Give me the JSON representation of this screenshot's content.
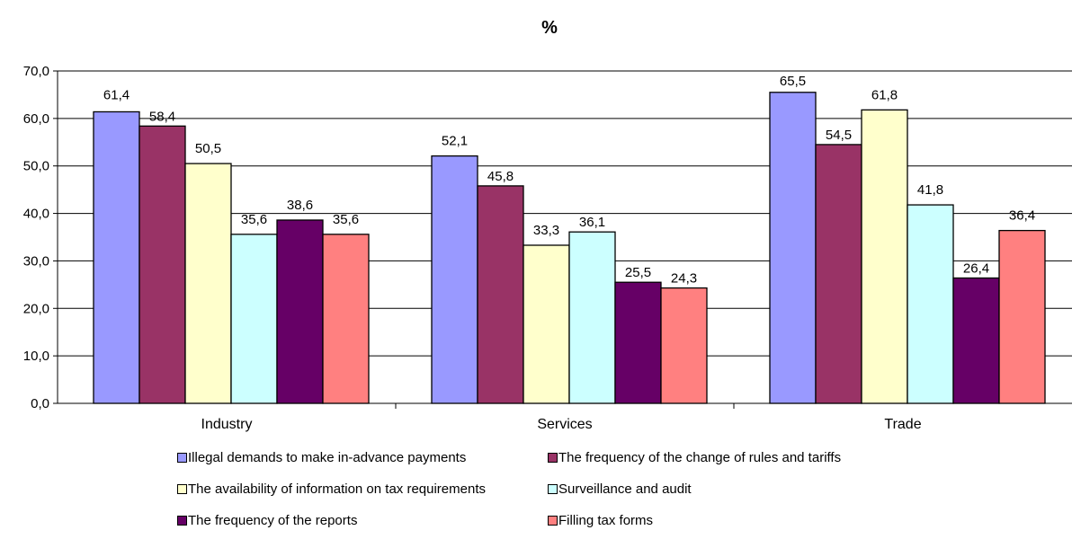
{
  "chart_data": {
    "type": "bar",
    "title": "%",
    "xlabel": "",
    "ylabel": "",
    "ylim": [
      0,
      70
    ],
    "yticks": [
      "0,0",
      "10,0",
      "20,0",
      "30,0",
      "40,0",
      "50,0",
      "60,0",
      "70,0"
    ],
    "grid": true,
    "legend_position": "bottom",
    "categories": [
      "Industry",
      "Services",
      "Trade"
    ],
    "series": [
      {
        "name": "Illegal demands to make in-advance payments",
        "color": "#9999ff",
        "values": [
          61.4,
          52.1,
          65.5
        ],
        "labels": [
          "61,4",
          "52,1",
          "65,5"
        ]
      },
      {
        "name": "The frequency of the change of rules and tariffs",
        "color": "#993366",
        "values": [
          58.4,
          45.8,
          54.5
        ],
        "labels": [
          "58,4",
          "45,8",
          "54,5"
        ]
      },
      {
        "name": "The availability of information on tax requirements",
        "color": "#ffffcc",
        "values": [
          50.5,
          33.3,
          61.8
        ],
        "labels": [
          "50,5",
          "33,3",
          "61,8"
        ]
      },
      {
        "name": "Surveillance and audit",
        "color": "#ccffff",
        "values": [
          35.6,
          36.1,
          41.8
        ],
        "labels": [
          "35,6",
          "36,1",
          "41,8"
        ]
      },
      {
        "name": "The frequency of the reports",
        "color": "#660066",
        "values": [
          38.6,
          25.5,
          26.4
        ],
        "labels": [
          "38,6",
          "25,5",
          "26,4"
        ]
      },
      {
        "name": "Filling tax forms",
        "color": "#ff8080",
        "values": [
          35.6,
          24.3,
          36.4
        ],
        "labels": [
          "35,6",
          "24,3",
          "36,4"
        ]
      }
    ]
  }
}
